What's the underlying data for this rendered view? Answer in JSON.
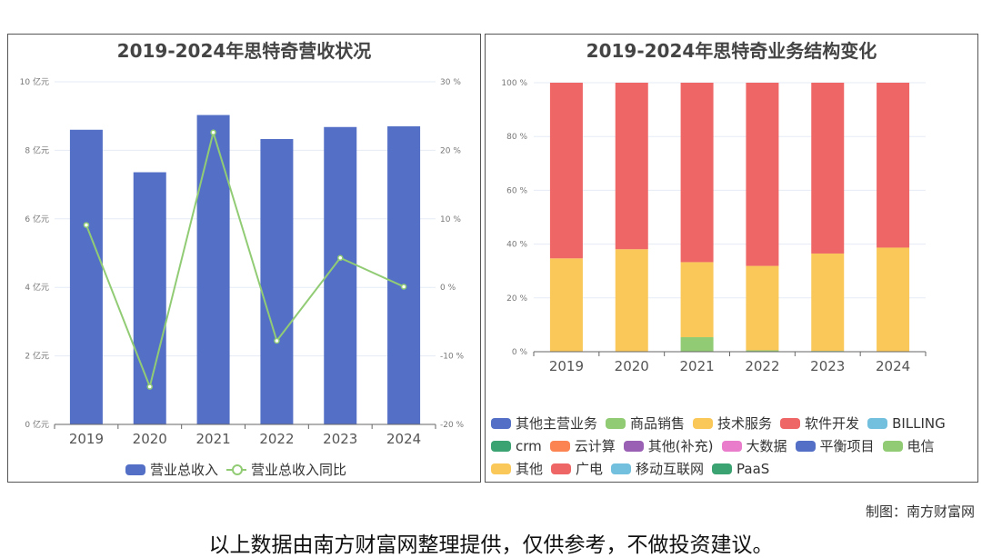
{
  "chart_data": [
    {
      "type": "bar+line",
      "title": "2019-2024年思特奇营收状况",
      "categories": [
        "2019",
        "2020",
        "2021",
        "2022",
        "2023",
        "2024"
      ],
      "series": [
        {
          "name": "营业总收入",
          "type": "bar",
          "axis": "left",
          "color": "#5470c6",
          "values": [
            8.6,
            7.36,
            9.03,
            8.33,
            8.68,
            8.7
          ]
        },
        {
          "name": "营业总收入同比",
          "type": "line",
          "axis": "right",
          "color": "#91cc75",
          "values": [
            9.1,
            -14.5,
            22.6,
            -7.8,
            4.3,
            0.1
          ]
        }
      ],
      "yleft": {
        "ylim": [
          0,
          10
        ],
        "ticks": [
          "0 亿元",
          "2 亿元",
          "4 亿元",
          "6 亿元",
          "8 亿元",
          "10 亿元"
        ]
      },
      "yright": {
        "ylim": [
          -20,
          30
        ],
        "ticks": [
          "-20 %",
          "-10 %",
          "0 %",
          "10 %",
          "20 %",
          "30 %"
        ]
      },
      "legend": "bottom"
    },
    {
      "type": "bar",
      "stacked": true,
      "title": "2019-2024年思特奇业务结构变化",
      "categories": [
        "2019",
        "2020",
        "2021",
        "2022",
        "2023",
        "2024"
      ],
      "ylim": [
        0,
        100
      ],
      "yticks": [
        "0 %",
        "20 %",
        "40 %",
        "60 %",
        "80 %",
        "100 %"
      ],
      "series": [
        {
          "name": "其他主营业务",
          "color": "#5470c6",
          "values": [
            0,
            0,
            0,
            0,
            0,
            0
          ]
        },
        {
          "name": "商品销售",
          "color": "#91cc75",
          "values": [
            0,
            0,
            5.4,
            0.5,
            0.3,
            0
          ]
        },
        {
          "name": "技术服务",
          "color": "#fac858",
          "values": [
            34.7,
            38.1,
            27.9,
            31.4,
            36.2,
            38.7
          ]
        },
        {
          "name": "软件开发",
          "color": "#ee6666",
          "values": [
            65.3,
            61.9,
            66.7,
            68.1,
            63.5,
            61.3
          ]
        },
        {
          "name": "BILLING",
          "color": "#73c0de",
          "values": [
            0,
            0,
            0,
            0,
            0,
            0
          ]
        },
        {
          "name": "crm",
          "color": "#3ba272",
          "values": [
            0,
            0,
            0,
            0,
            0,
            0
          ]
        },
        {
          "name": "云计算",
          "color": "#fc8452",
          "values": [
            0,
            0,
            0,
            0,
            0,
            0
          ]
        },
        {
          "name": "其他(补充)",
          "color": "#9a60b4",
          "values": [
            0,
            0,
            0,
            0,
            0,
            0
          ]
        },
        {
          "name": "大数据",
          "color": "#ea7ccc",
          "values": [
            0,
            0,
            0,
            0,
            0,
            0
          ]
        },
        {
          "name": "平衡项目",
          "color": "#5470c6",
          "values": [
            0,
            0,
            0,
            0,
            0,
            0
          ]
        },
        {
          "name": "电信",
          "color": "#91cc75",
          "values": [
            0,
            0,
            0,
            0,
            0,
            0
          ]
        },
        {
          "name": "其他",
          "color": "#fac858",
          "values": [
            0,
            0,
            0,
            0,
            0,
            0
          ]
        },
        {
          "name": "广电",
          "color": "#ee6666",
          "values": [
            0,
            0,
            0,
            0,
            0,
            0
          ]
        },
        {
          "name": "移动互联网",
          "color": "#73c0de",
          "values": [
            0,
            0,
            0,
            0,
            0,
            0
          ]
        },
        {
          "name": "PaaS",
          "color": "#3ba272",
          "values": [
            0,
            0,
            0,
            0,
            0,
            0
          ]
        }
      ],
      "legend": "bottom"
    }
  ],
  "footer": {
    "credit": "制图：南方财富网",
    "disclaimer": "以上数据由南方财富网整理提供，仅供参考，不做投资建议。"
  }
}
